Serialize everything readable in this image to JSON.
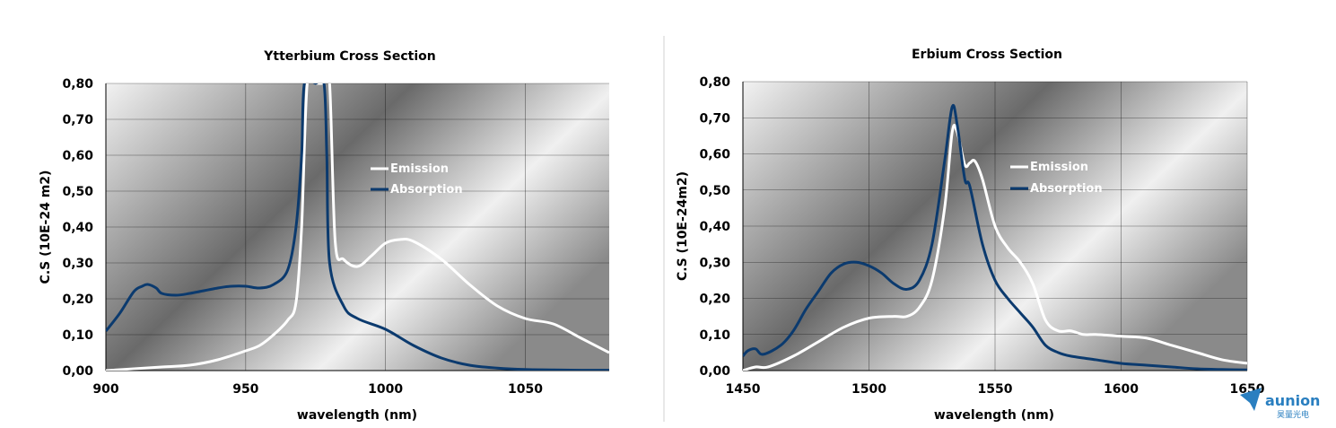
{
  "chart_data": [
    {
      "type": "line",
      "title": "Ytterbium Cross Section",
      "xlabel": "wavelength (nm)",
      "ylabel": "C.S (10E-24 m2)",
      "xlim": [
        900,
        1080
      ],
      "ylim": [
        0,
        0.8
      ],
      "xticks": [
        900,
        950,
        1000,
        1050
      ],
      "yticks": [
        "0,00",
        "0,10",
        "0,20",
        "0,30",
        "0,40",
        "0,50",
        "0,60",
        "0,70",
        "0,80"
      ],
      "grid": true,
      "legend": "upper-right inside",
      "series": [
        {
          "name": "Emission",
          "color": "#ffffff",
          "x": [
            900,
            910,
            920,
            930,
            940,
            950,
            955,
            960,
            965,
            968,
            970,
            972,
            975,
            978,
            980,
            982,
            985,
            990,
            995,
            1000,
            1005,
            1010,
            1020,
            1030,
            1040,
            1050,
            1060,
            1070,
            1080
          ],
          "y": [
            0.0,
            0.005,
            0.01,
            0.015,
            0.03,
            0.055,
            0.07,
            0.1,
            0.14,
            0.19,
            0.4,
            0.8,
            0.8,
            0.8,
            0.8,
            0.36,
            0.31,
            0.29,
            0.32,
            0.355,
            0.365,
            0.36,
            0.31,
            0.24,
            0.18,
            0.145,
            0.13,
            0.09,
            0.05
          ]
        },
        {
          "name": "Absorption",
          "color": "#0b3a6e",
          "x": [
            900,
            905,
            910,
            913,
            915,
            918,
            920,
            925,
            930,
            940,
            945,
            950,
            955,
            960,
            965,
            968,
            970,
            971,
            975,
            978,
            979,
            980,
            985,
            990,
            1000,
            1010,
            1020,
            1030,
            1040,
            1050,
            1060,
            1070,
            1080
          ],
          "y": [
            0.11,
            0.16,
            0.22,
            0.235,
            0.24,
            0.23,
            0.215,
            0.21,
            0.215,
            0.23,
            0.235,
            0.235,
            0.23,
            0.24,
            0.28,
            0.4,
            0.6,
            0.8,
            0.8,
            0.8,
            0.6,
            0.3,
            0.18,
            0.145,
            0.115,
            0.07,
            0.035,
            0.015,
            0.007,
            0.003,
            0.002,
            0.001,
            0.001
          ]
        }
      ]
    },
    {
      "type": "line",
      "title": "Erbium Cross Section",
      "xlabel": "wavelength (nm)",
      "ylabel": "C.S (10E-24m2)",
      "xlim": [
        1450,
        1650
      ],
      "ylim": [
        0,
        0.8
      ],
      "xticks": [
        1450,
        1500,
        1550,
        1600,
        1650
      ],
      "yticks": [
        "0,00",
        "0,10",
        "0,20",
        "0,30",
        "0,40",
        "0,50",
        "0,60",
        "0,70",
        "0,80"
      ],
      "grid": true,
      "legend": "upper-right inside",
      "series": [
        {
          "name": "Emission",
          "color": "#ffffff",
          "x": [
            1450,
            1455,
            1460,
            1470,
            1480,
            1490,
            1500,
            1510,
            1515,
            1520,
            1525,
            1530,
            1533,
            1535,
            1538,
            1540,
            1542,
            1545,
            1550,
            1555,
            1560,
            1565,
            1570,
            1575,
            1580,
            1585,
            1590,
            1600,
            1610,
            1620,
            1630,
            1640,
            1650
          ],
          "y": [
            0.0,
            0.01,
            0.01,
            0.04,
            0.08,
            0.12,
            0.145,
            0.15,
            0.15,
            0.175,
            0.25,
            0.45,
            0.66,
            0.66,
            0.57,
            0.575,
            0.58,
            0.53,
            0.4,
            0.34,
            0.3,
            0.24,
            0.14,
            0.11,
            0.11,
            0.1,
            0.1,
            0.095,
            0.09,
            0.07,
            0.05,
            0.03,
            0.02
          ]
        },
        {
          "name": "Absorption",
          "color": "#0b3a6e",
          "x": [
            1450,
            1452,
            1455,
            1458,
            1465,
            1470,
            1475,
            1480,
            1485,
            1490,
            1495,
            1500,
            1505,
            1510,
            1515,
            1520,
            1525,
            1530,
            1533,
            1535,
            1538,
            1540,
            1545,
            1550,
            1555,
            1560,
            1565,
            1570,
            1575,
            1580,
            1590,
            1600,
            1610,
            1620,
            1630,
            1640,
            1650
          ],
          "y": [
            0.04,
            0.055,
            0.06,
            0.045,
            0.07,
            0.11,
            0.17,
            0.22,
            0.27,
            0.295,
            0.3,
            0.29,
            0.27,
            0.24,
            0.225,
            0.25,
            0.35,
            0.58,
            0.73,
            0.68,
            0.53,
            0.51,
            0.35,
            0.25,
            0.2,
            0.16,
            0.12,
            0.07,
            0.05,
            0.04,
            0.03,
            0.02,
            0.015,
            0.01,
            0.005,
            0.003,
            0.002
          ]
        }
      ]
    }
  ],
  "brand": {
    "name": "aunion",
    "sub": "昊量光电",
    "color": "#2a7fc0"
  }
}
